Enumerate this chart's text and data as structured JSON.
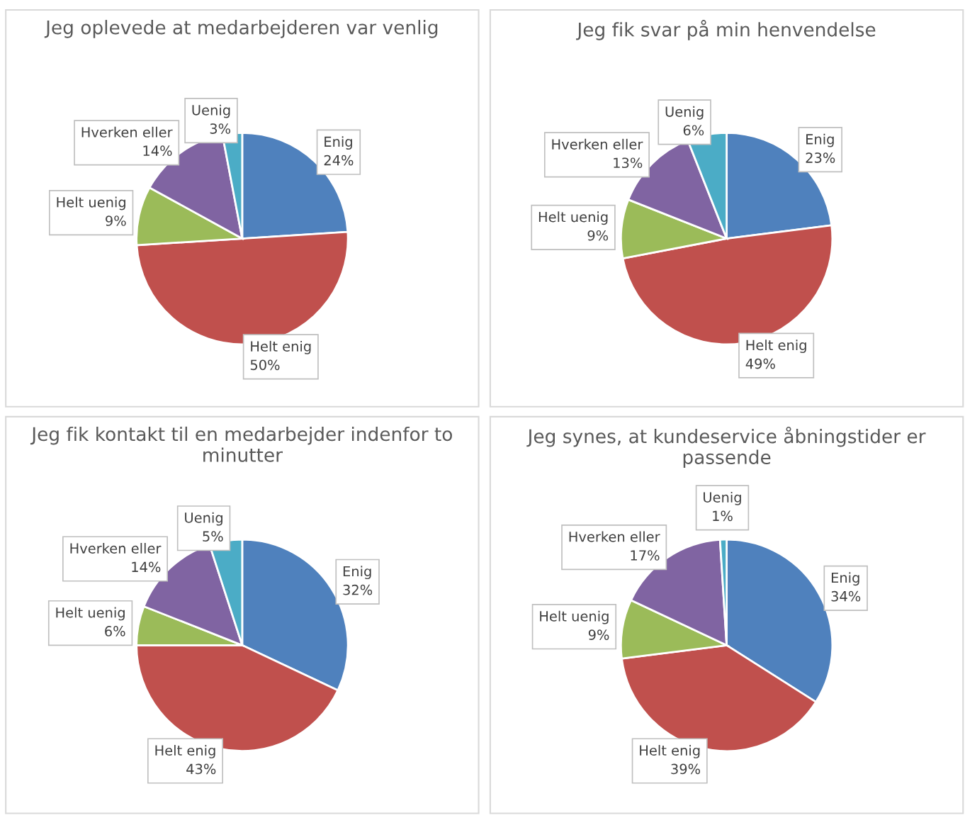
{
  "chart_data": [
    {
      "type": "pie",
      "title": "Jeg oplevede at medarbejderen var venlig",
      "categories": [
        "Enig",
        "Helt enig",
        "Helt uenig",
        "Hverken eller",
        "Uenig"
      ],
      "values": [
        24,
        50,
        9,
        14,
        3
      ],
      "value_labels": [
        "24%",
        "50%",
        "9%",
        "14%",
        "3%"
      ],
      "colors": [
        "#4f81bd",
        "#c0504d",
        "#9bbb59",
        "#8064a2",
        "#4bacc6"
      ]
    },
    {
      "type": "pie",
      "title": "Jeg fik svar på min henvendelse",
      "categories": [
        "Enig",
        "Helt enig",
        "Helt uenig",
        "Hverken eller",
        "Uenig"
      ],
      "values": [
        23,
        49,
        9,
        13,
        6
      ],
      "value_labels": [
        "23%",
        "49%",
        "9%",
        "13%",
        "6%"
      ],
      "colors": [
        "#4f81bd",
        "#c0504d",
        "#9bbb59",
        "#8064a2",
        "#4bacc6"
      ]
    },
    {
      "type": "pie",
      "title": "Jeg fik kontakt til en medarbejder indenfor to minutter",
      "categories": [
        "Enig",
        "Helt enig",
        "Helt uenig",
        "Hverken eller",
        "Uenig"
      ],
      "values": [
        32,
        43,
        6,
        14,
        5
      ],
      "value_labels": [
        "32%",
        "43%",
        "6%",
        "14%",
        "5%"
      ],
      "colors": [
        "#4f81bd",
        "#c0504d",
        "#9bbb59",
        "#8064a2",
        "#4bacc6"
      ]
    },
    {
      "type": "pie",
      "title": "Jeg synes, at kundeservice åbningstider er passende",
      "categories": [
        "Enig",
        "Helt enig",
        "Helt uenig",
        "Hverken eller",
        "Uenig"
      ],
      "values": [
        34,
        39,
        9,
        17,
        1
      ],
      "value_labels": [
        "34%",
        "39%",
        "9%",
        "17%",
        "1%"
      ],
      "colors": [
        "#4f81bd",
        "#c0504d",
        "#9bbb59",
        "#8064a2",
        "#4bacc6"
      ]
    }
  ]
}
